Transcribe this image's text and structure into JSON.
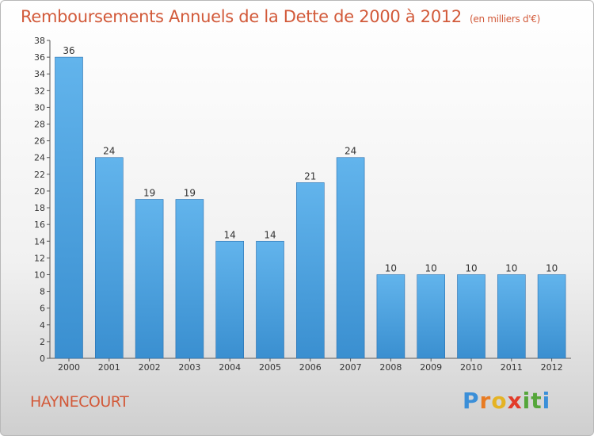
{
  "title": "Remboursements Annuels de la Dette de 2000 à 2012",
  "subtitle": "(en milliers d'€)",
  "commune": "HAYNECOURT",
  "logo": {
    "letters": [
      "P",
      "r",
      "o",
      "x",
      "i",
      "t",
      "i"
    ],
    "colors": [
      "#3b8fd8",
      "#e87b22",
      "#e5b324",
      "#e23c2a",
      "#55a63a",
      "#55a63a",
      "#3b8fd8"
    ]
  },
  "colors": {
    "bar": "#3a8fd0",
    "bar_light": "#62b4ec",
    "accent": "#d25a3a"
  },
  "chart_data": {
    "type": "bar",
    "categories": [
      "2000",
      "2001",
      "2002",
      "2003",
      "2004",
      "2005",
      "2006",
      "2007",
      "2008",
      "2009",
      "2010",
      "2011",
      "2012"
    ],
    "values": [
      36,
      24,
      19,
      19,
      14,
      14,
      21,
      24,
      10,
      10,
      10,
      10,
      10
    ],
    "ylim": [
      0,
      38
    ],
    "ytick_step": 2,
    "grid": false
  }
}
